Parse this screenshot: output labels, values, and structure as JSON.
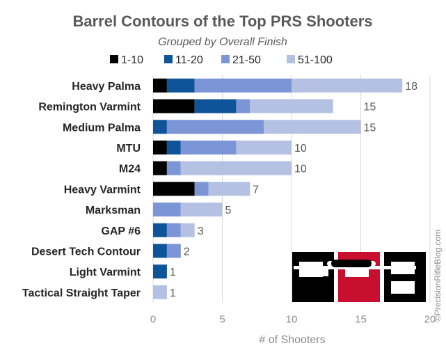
{
  "chart_data": {
    "type": "bar",
    "orientation": "horizontal",
    "stacked": true,
    "title": "Barrel Contours of the Top PRS Shooters",
    "subtitle": "Grouped by Overall Finish",
    "xlabel": "# of Shooters",
    "ylabel": "",
    "xlim": [
      0,
      20
    ],
    "xticks": [
      0,
      5,
      10,
      15,
      20
    ],
    "grid": true,
    "legend_position": "top",
    "categories": [
      "Heavy Palma",
      "Remington Varmint",
      "Medium Palma",
      "MTU",
      "M24",
      "Heavy Varmint",
      "Marksman",
      "GAP #6",
      "Desert Tech Contour",
      "Light Varmint",
      "Tactical Straight Taper"
    ],
    "series": [
      {
        "name": "1-10",
        "color": "#000000",
        "values": [
          1,
          3,
          0,
          1,
          1,
          3,
          0,
          0,
          0,
          0,
          0
        ]
      },
      {
        "name": "11-20",
        "color": "#0f5499",
        "values": [
          2,
          3,
          1,
          1,
          0,
          0,
          0,
          1,
          1,
          1,
          0
        ]
      },
      {
        "name": "21-50",
        "color": "#7b95d6",
        "values": [
          7,
          1,
          7,
          4,
          1,
          1,
          2,
          1,
          1,
          0,
          0
        ]
      },
      {
        "name": "51-100",
        "color": "#b4c1e3",
        "values": [
          8,
          6,
          7,
          4,
          8,
          3,
          3,
          1,
          0,
          0,
          1
        ]
      }
    ],
    "totals": [
      18,
      15,
      15,
      10,
      10,
      7,
      5,
      3,
      2,
      1,
      1
    ]
  },
  "watermark": {
    "logo_text": "PRB",
    "credit": "©PrecisionRifleBlog.com"
  }
}
